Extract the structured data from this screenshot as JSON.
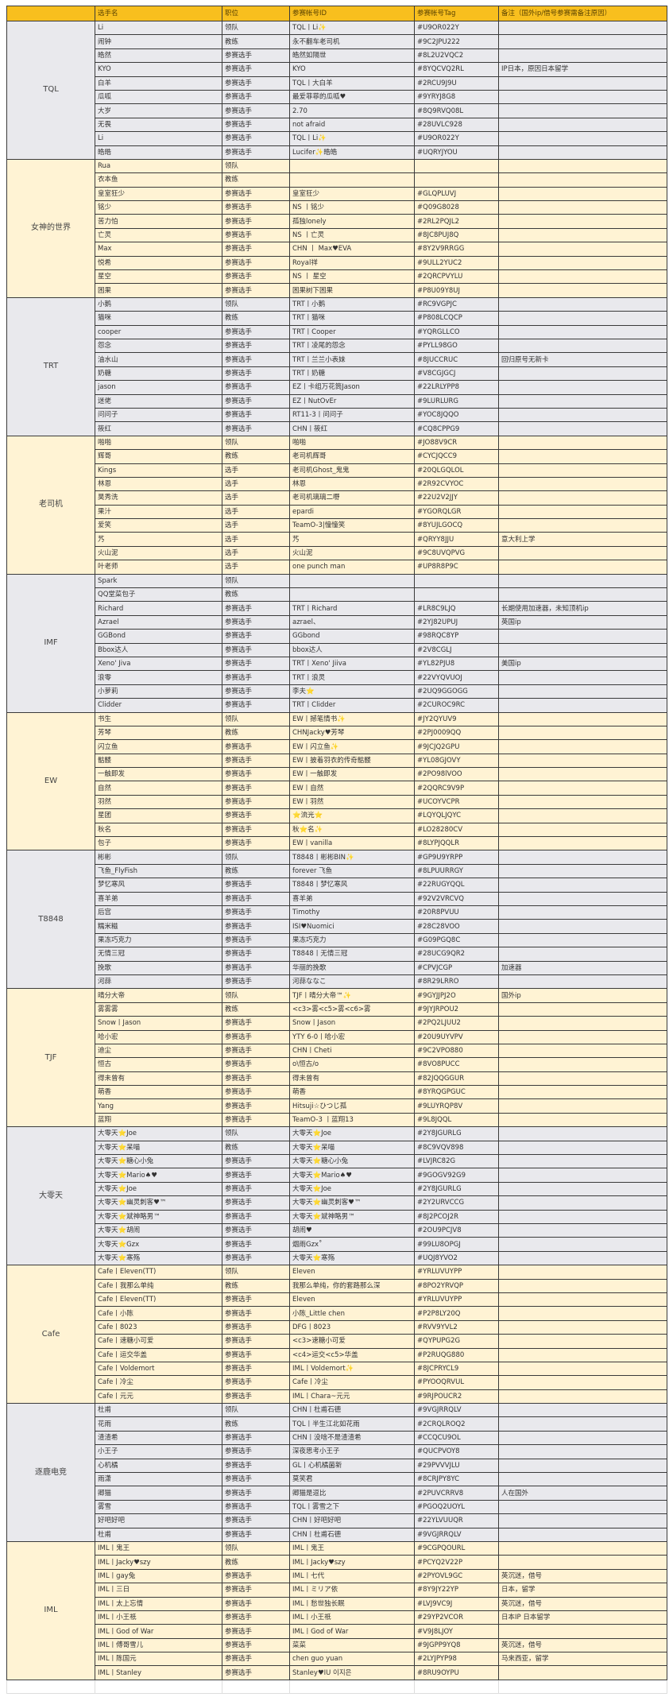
{
  "header": [
    "",
    "选手名",
    "职位",
    "参赛帐号ID",
    "参赛帐号Tag",
    "备注（国外ip/借号参赛需备注原因）"
  ],
  "colors": {
    "header": "#F8BF1E",
    "yellow_row": "#FFF3D4",
    "gray_row": "#E9E9ED"
  },
  "teams": [
    {
      "name": "TQL",
      "tone": "gray",
      "rows": [
        [
          "Li",
          "领队",
          "TQL丨Li✨",
          "#U9OR022Y",
          ""
        ],
        [
          "闹钟",
          "教练",
          "永不翻车老司机",
          "#9C2JPU222",
          ""
        ],
        [
          "皓然",
          "参赛选手",
          "皓然如隔世",
          "#8L2U2VQC2",
          ""
        ],
        [
          "KYO",
          "参赛选手",
          "KYO",
          "#8YQCVQ2RL",
          "IP日本，原因日本留学"
        ],
        [
          "白羊",
          "参赛选手",
          "TQL丨大白羊",
          "#2RCU9J9U",
          ""
        ],
        [
          "瓜呱",
          "参赛选手",
          "最爱菲菲的瓜呱♥",
          "#9YRYJ8G8",
          ""
        ],
        [
          "大岁",
          "参赛选手",
          "2.70",
          "#8Q9RVQ08L",
          ""
        ],
        [
          "无畏",
          "参赛选手",
          "not afraid",
          "#28UVLC928",
          ""
        ],
        [
          "Li",
          "参赛选手",
          "TQL丨Li✨",
          "#U9OR022Y",
          ""
        ],
        [
          "皓皓",
          "参赛选手",
          "Lucifer✨皓皓",
          "#UQRYJYOU",
          ""
        ]
      ]
    },
    {
      "name": "女神的世界",
      "tone": "yellow",
      "rows": [
        [
          "Rua",
          "领队",
          "",
          "",
          ""
        ],
        [
          "衣本鱼",
          "教练",
          "",
          "",
          ""
        ],
        [
          "皇室狂少",
          "参赛选手",
          "皇室狂少",
          "#GLQPLUVJ",
          ""
        ],
        [
          "铭少",
          "参赛选手",
          "NS 丨铭少",
          "#Q09G8028",
          ""
        ],
        [
          "苦力怕",
          "参赛选手",
          "孤独lonely",
          "#2RL2PQJL2",
          ""
        ],
        [
          "亡灵",
          "参赛选手",
          "NS 丨亡灵",
          "#8JC8PUJ8Q",
          ""
        ],
        [
          "Max",
          "参赛选手",
          "CHN 丨 Max♥EVA",
          "#8Y2V9RRGG",
          ""
        ],
        [
          "悦希",
          "参赛选手",
          "Royal祥",
          "#9ULL2YUC2",
          ""
        ],
        [
          "星空",
          "参赛选手",
          "NS 丨 星空",
          "#2QRCPVYLU",
          ""
        ],
        [
          "困果",
          "参赛选手",
          "困果树下困果",
          "#P8U09Y8UJ",
          ""
        ]
      ]
    },
    {
      "name": "TRT",
      "tone": "gray",
      "rows": [
        [
          "小鹅",
          "领队",
          "TRT丨小鹅",
          "#RC9VGPJC",
          ""
        ],
        [
          "猫咪",
          "教练",
          "TRT丨猫咪",
          "#P808LCQCP",
          ""
        ],
        [
          "cooper",
          "参赛选手",
          "TRT丨Cooper",
          "#YQRGLLCO",
          ""
        ],
        [
          "怨念",
          "参赛选手",
          "TRT丨凌尾的怨念",
          "#PYLL98GO",
          ""
        ],
        [
          "油水山",
          "参赛选手",
          "TRT丨兰兰小表妹",
          "#8JUCCRUC",
          "回归原号无新卡"
        ],
        [
          "奶糖",
          "参赛选手",
          "TRT丨奶糖",
          "#V8CGJGCJ",
          ""
        ],
        [
          "jason",
          "参赛选手",
          "EZ丨卡组万花筒Jason",
          "#22LRLYPP8",
          ""
        ],
        [
          "迷佬",
          "参赛选手",
          "EZ丨NutOvEr",
          "#9LURLURG",
          ""
        ],
        [
          "问问子",
          "参赛选手",
          "RT11-3丨问问子",
          "#YOC8JQQO",
          ""
        ],
        [
          "筱红",
          "参赛选手",
          "CHN丨筱红",
          "#CQ8CPPG9",
          ""
        ]
      ]
    },
    {
      "name": "老司机",
      "tone": "yellow",
      "rows": [
        [
          "啪啪",
          "领队",
          "啪啪",
          "#JO88V9CR",
          ""
        ],
        [
          "辉哥",
          "教练",
          "老司机辉哥",
          "#CYCJQCC9",
          ""
        ],
        [
          "Kings",
          "选手",
          "老司机Ghost_鬼鬼",
          "#20QLGQLOL",
          ""
        ],
        [
          "林恩",
          "选手",
          "林恩",
          "#2R92CVYOC",
          ""
        ],
        [
          "昊秀洗",
          "选手",
          "老司机璃璃二嘢",
          "#22U2V2JJY",
          ""
        ],
        [
          "果汁",
          "选手",
          "epardi",
          "#YGORQLGR",
          ""
        ],
        [
          "爱笑",
          "选手",
          "TeamO-3|憧憧笑",
          "#8YUJLGOCQ",
          ""
        ],
        [
          "艿",
          "选手",
          "艿",
          "#QRYY8JJU",
          "意大利上学"
        ],
        [
          "火山泥",
          "选手",
          "火山泥",
          "#9C8UVQPVG",
          ""
        ],
        [
          "叶老师",
          "选手",
          "one punch man",
          "#UP8R8P9C",
          ""
        ]
      ]
    },
    {
      "name": "IMF",
      "tone": "gray",
      "rows": [
        [
          "Spark",
          "领队",
          "",
          "",
          ""
        ],
        [
          "QQ堂菜包子",
          "教练",
          "",
          "",
          ""
        ],
        [
          "Richard",
          "参赛选手",
          "TRT丨Richard",
          "#LR8C9LJQ",
          "长期使用加速器，未知顶机ip"
        ],
        [
          "Azrael",
          "参赛选手",
          "azrael、",
          "#2YJ82UPUJ",
          "英国ip"
        ],
        [
          "GGBond",
          "参赛选手",
          "GGbond",
          "#98RQC8YP",
          ""
        ],
        [
          "Bbox达人",
          "参赛选手",
          "bbox达人",
          "#2V8CGLJ",
          ""
        ],
        [
          "Xeno' Jiva",
          "参赛选手",
          "TRT丨Xeno' Jiiva",
          "#YL82PJU8",
          "美国ip"
        ],
        [
          "浪零",
          "参赛选手",
          "TRT丨浪灵",
          "#22VYQVUOJ",
          ""
        ],
        [
          "小萝莉",
          "参赛选手",
          "李夫⭐",
          "#2UQ9GGOGG",
          ""
        ],
        [
          "Clidder",
          "参赛选手",
          "TRT丨Clidder",
          "#2CUROC9RC",
          ""
        ]
      ]
    },
    {
      "name": "EW",
      "tone": "yellow",
      "rows": [
        [
          "书生",
          "领队",
          "EW丨撼笔情书✨",
          "#JY2QYUV9",
          ""
        ],
        [
          "芳琴",
          "教练",
          "CHNJacky♥芳琴",
          "#2PJ0009QQ",
          ""
        ],
        [
          "闪立鱼",
          "参赛选手",
          "EW丨闪立鱼✨",
          "#9JCJQ2GPU",
          ""
        ],
        [
          "骷髅",
          "参赛选手",
          "EW丨披着羽衣的传奇骷髅",
          "#YL08GJOVY",
          ""
        ],
        [
          "一触即发",
          "参赛选手",
          "EW丨一触即发",
          "#2PO98lVOO",
          ""
        ],
        [
          "自然",
          "参赛选手",
          "EW丨自然",
          "#2QQRC9V9P",
          ""
        ],
        [
          "羽然",
          "参赛选手",
          "EW丨羽然",
          "#UCOYVCPR",
          ""
        ],
        [
          "星团",
          "参赛选手",
          "⭐流光⭐",
          "#LQYQLJQYC",
          ""
        ],
        [
          "秋名",
          "参赛选手",
          "秋⭐名✨",
          "#LO28280CV",
          ""
        ],
        [
          "包子",
          "参赛选手",
          "EW丨vanilla",
          "#8LYPJQQLR",
          ""
        ]
      ]
    },
    {
      "name": "T8848",
      "tone": "gray",
      "rows": [
        [
          "彬彬",
          "领队",
          "T8848丨彬彬BIN✨",
          "#GP9U9YRPP",
          ""
        ],
        [
          "飞鱼_FlyFish",
          "教练",
          "forever 飞鱼",
          "#8LPUURRGY",
          ""
        ],
        [
          "梦忆寒风",
          "参赛选手",
          "T8848丨梦忆寒风",
          "#22RUGYQQL",
          ""
        ],
        [
          "喜羊弟",
          "参赛选手",
          "喜羊弟",
          "#92V2VRCVQ",
          ""
        ],
        [
          "后宫",
          "参赛选手",
          "Timothy",
          "#20R8PVUU",
          ""
        ],
        [
          "糯米糍",
          "参赛选手",
          "ISI♥Nuomici",
          "#28C28VOO",
          ""
        ],
        [
          "果冻巧克力",
          "参赛选手",
          "果冻巧克力",
          "#G09PGQ8C",
          ""
        ],
        [
          "无情三冠",
          "参赛选手",
          "T8848丨无情三冠",
          "#28UCG9QR2",
          ""
        ],
        [
          "挽歌",
          "参赛选手",
          "华丽的挽歌",
          "#CPVJCGP",
          "加速器"
        ],
        [
          "河蒜",
          "参赛选手",
          "河蒜ななこ",
          "#8R29LRRO",
          ""
        ]
      ]
    },
    {
      "name": "TJF",
      "tone": "yellow",
      "rows": [
        [
          "晴分大帝",
          "领队",
          "TJF丨晴分大帝™✨",
          "#9GYJJPJ2O",
          "国外ip"
        ],
        [
          "雾雾雾",
          "教练",
          "<c3>雾<c5>雾<c6>雾",
          "#9JYJRPOU2",
          ""
        ],
        [
          "Snow丨Jason",
          "参赛选手",
          "Snow丨Jason",
          "#2PQ2LJUU2",
          ""
        ],
        [
          "哈小宏",
          "参赛选手",
          "YTY 6-0丨哈小宏",
          "#20U9UYVPV",
          ""
        ],
        [
          "迪尘",
          "参赛选手",
          "CHN丨Cheti",
          "#9C2VPO880",
          ""
        ],
        [
          "恒古",
          "参赛选手",
          "o\\恒古/o",
          "#8VO8PUCC",
          ""
        ],
        [
          "得未曾有",
          "参赛选手",
          "得未曾有",
          "#82JQQGGUR",
          ""
        ],
        [
          "萌香",
          "参赛选手",
          "萌香",
          "#8YRQGPGUC",
          ""
        ],
        [
          "Yang",
          "参赛选手",
          "Hitsuji☆ひつじ孤",
          "#9LUYRQP8V",
          ""
        ],
        [
          "蓝翔",
          "参赛选手",
          "TeamO-3 丨蓝翔13",
          "#9L8JQQL",
          ""
        ]
      ]
    },
    {
      "name": "大零天",
      "tone": "gray",
      "rows": [
        [
          "大零天⭐Joe",
          "领队",
          "大零天⭐Joe",
          "#2Y8JGURLG",
          ""
        ],
        [
          "大零天⭐呆喵",
          "教练",
          "大零天⭐呆喵",
          "#8C9VQV898",
          ""
        ],
        [
          "大零天⭐糖心小兔",
          "参赛选手",
          "大零天⭐糖心小兔",
          "#LVJRC82G",
          ""
        ],
        [
          "大零天⭐Mario♠♥",
          "参赛选手",
          "大零天⭐Mario♠♥",
          "#9GOGV92G9",
          ""
        ],
        [
          "大零天⭐Joe",
          "参赛选手",
          "大零天⭐Joe",
          "#2Y8JGURLG",
          ""
        ],
        [
          "大零天⭐幽灵刺客♥™",
          "参赛选手",
          "大零天⭐幽灵刺客♥™",
          "#2Y2URVCCG",
          ""
        ],
        [
          "大零天⭐斌神略男™",
          "参赛选手",
          "大零天⭐斌神略男™",
          "#8J2PCOJ2R",
          ""
        ],
        [
          "大零天⭐胡闹",
          "参赛选手",
          "胡闹♥",
          "#2OU9PCJV8",
          ""
        ],
        [
          "大零天⭐Gzx",
          "参赛选手",
          "烟雨Gzx˚",
          "#99LU8OPGJ",
          ""
        ],
        [
          "大零天⭐寒殇",
          "参赛选手",
          "大零天⭐寒殇",
          "#UQJ8YVO2",
          ""
        ]
      ]
    },
    {
      "name": "Cafe",
      "tone": "yellow",
      "rows": [
        [
          "Cafe丨Eleven(TT)",
          "领队",
          "Eleven",
          "#YRLUVUYPP",
          ""
        ],
        [
          "Cafe丨我那么单纯",
          "教练",
          "我那么单纯，你的套路那么深",
          "#8PO2YRVQP",
          ""
        ],
        [
          "Cafe丨Eleven(TT)",
          "参赛选手",
          "Eleven",
          "#YRLUVUYPP",
          ""
        ],
        [
          "Cafe丨小陈",
          "参赛选手",
          "小陈_Little chen",
          "#P2P8LY20Q",
          ""
        ],
        [
          "Cafe丨8023",
          "参赛选手",
          "DFG丨8023",
          "#RVV9YVL2",
          ""
        ],
        [
          "Cafe丨速糖小可爱",
          "参赛选手",
          "<c3>速糖小可爱",
          "#QYPUPG2G",
          ""
        ],
        [
          "Cafe丨运交华盖",
          "参赛选手",
          "<c4>运交<c5>华盖",
          "#P2RUQG880",
          ""
        ],
        [
          "Cafe丨Voldemort",
          "参赛选手",
          "IML丨Voldemort✨",
          "#8JCPRYCL9",
          ""
        ],
        [
          "Cafe丨冷尘",
          "参赛选手",
          "Cafe丨冷尘",
          "#PYOOQRVUL",
          ""
        ],
        [
          "Cafe丨元元",
          "参赛选手",
          "IML丨Chara~元元",
          "#9RJPOUCR2",
          ""
        ]
      ]
    },
    {
      "name": "逐鹿电竞",
      "tone": "gray",
      "rows": [
        [
          "杜甫",
          "领队",
          "CHN丨杜甫石德",
          "#9VGJRRQLV",
          ""
        ],
        [
          "花雨",
          "教练",
          "TQL丨半生江北如花雨",
          "#2CRQLROQ2",
          ""
        ],
        [
          "渣渣希",
          "参赛选手",
          "CHN丨没啥不是渣渣希",
          "#CCQCU9OL",
          ""
        ],
        [
          "小王子",
          "参赛选手",
          "深夜思考小王子",
          "#QUCPVOY8",
          ""
        ],
        [
          "心机橘",
          "参赛选手",
          "GL丨心机橘菌新",
          "#29PVVVJLU",
          ""
        ],
        [
          "雨潇",
          "参赛选手",
          "莫笑君",
          "#8CRJPY8YC",
          ""
        ],
        [
          "卿猫",
          "参赛选手",
          "卿猫是逗比",
          "#2PUVCRRV8",
          "人在国外"
        ],
        [
          "雾雪",
          "参赛选手",
          "TQL丨雾雪之下",
          "#PGOQ2UOYL",
          ""
        ],
        [
          "好吧好吧",
          "参赛选手",
          "CHN丨好吧好吧",
          "#22YLVUUQR",
          ""
        ],
        [
          "杜甫",
          "参赛选手",
          "CHN丨杜甫石德",
          "#9VGJRRQLV",
          ""
        ]
      ]
    },
    {
      "name": "IML",
      "tone": "yellow",
      "rows": [
        [
          "IML丨鬼王",
          "领队",
          "IML丨鬼王",
          "#9CGPQOURL",
          ""
        ],
        [
          "IML丨Jacky♥szy",
          "教练",
          "IML丨Jacky♥szy",
          "#PCYQ2V22P",
          ""
        ],
        [
          "IML丨gay兔",
          "参赛选手",
          "IML丨七代",
          "#2PYOVL9GC",
          "英沉迷，借号"
        ],
        [
          "IML丨三日",
          "参赛选手",
          "IML丨ミリア依",
          "#8Y9JY22YP",
          "日本，留学"
        ],
        [
          "IML丨太上忘情",
          "参赛选手",
          "IML丨愁世独长眠",
          "#LVJ9VC9J",
          "英沉迷，借号"
        ],
        [
          "IML丨小王祇",
          "参赛选手",
          "IML丨小王祇",
          "#29YP2VCOR",
          "日本IP 日本留学"
        ],
        [
          "IML丨God of War",
          "参赛选手",
          "IML丨God of War",
          "#V9J8LJOY",
          ""
        ],
        [
          "IML丨傅哥雪儿",
          "参赛选手",
          "菜菜",
          "#9JGPP9YQ8",
          "英沉迷，借号"
        ],
        [
          "IML丨陈国元",
          "参赛选手",
          "chen guo yuan",
          "#2LYJPYP98",
          "马来西亚，留学"
        ],
        [
          "IML丨Stanley",
          "参赛选手",
          "Stanley♥IU 이지은",
          "#8RU9OYPU",
          ""
        ]
      ]
    }
  ]
}
